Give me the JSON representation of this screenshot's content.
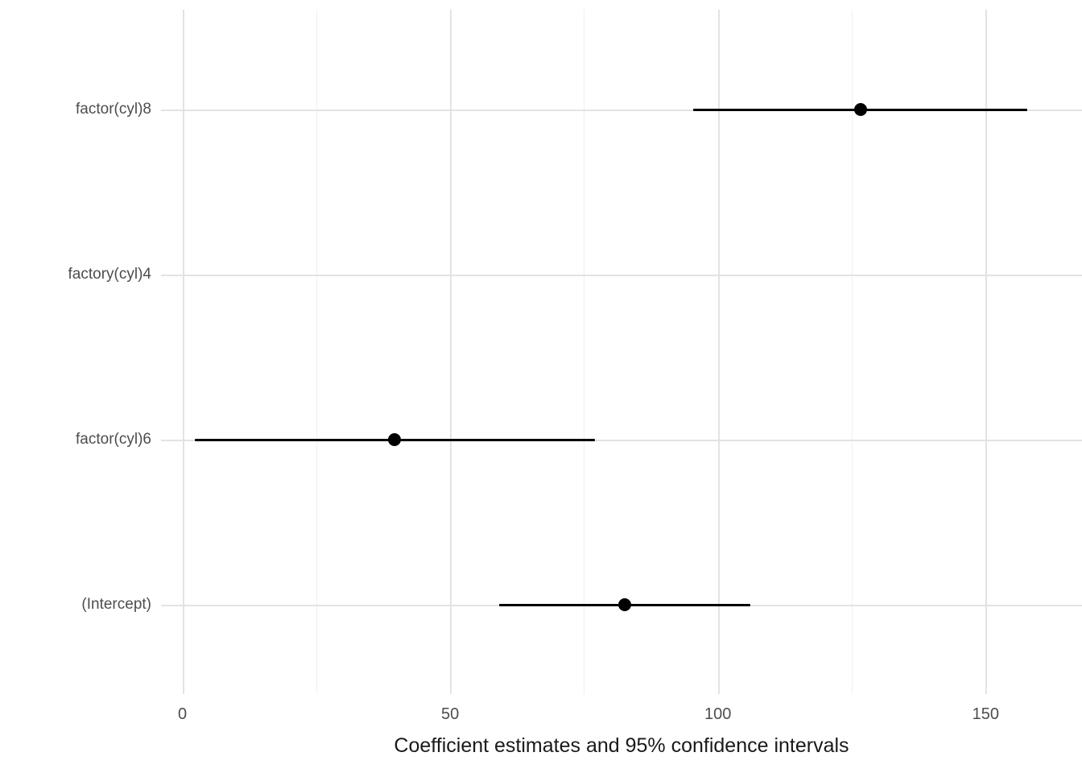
{
  "chart_data": {
    "type": "scatter",
    "subtype": "coefficient-plot-with-error-bars",
    "orientation": "horizontal",
    "title": "",
    "xlabel": "Coefficient estimates and 95% confidence intervals",
    "ylabel": "",
    "xlim": [
      -4,
      168
    ],
    "x_major_ticks": [
      0,
      50,
      100,
      150
    ],
    "x_major_tick_labels": [
      "0",
      "50",
      "100",
      "150"
    ],
    "x_minor_ticks": [
      25,
      75,
      125
    ],
    "grid": "major-and-minor-vertical, major-horizontal-at-categories",
    "legend": "none",
    "categories_top_to_bottom": [
      "factor(cyl)8",
      "factory(cyl)4",
      "factor(cyl)6",
      "(Intercept)"
    ],
    "series": [
      {
        "label": "factor(cyl)8",
        "estimate": 126.6,
        "ci_lower": 95.4,
        "ci_upper": 157.8
      },
      {
        "label": "factory(cyl)4",
        "estimate": null,
        "ci_lower": null,
        "ci_upper": null
      },
      {
        "label": "factor(cyl)6",
        "estimate": 39.6,
        "ci_lower": 2.3,
        "ci_upper": 77.0
      },
      {
        "label": "(Intercept)",
        "estimate": 82.6,
        "ci_lower": 59.2,
        "ci_upper": 106.0
      }
    ],
    "colors": {
      "point": "#000000",
      "ci_line": "#000000",
      "major_grid": "#e3e3e3",
      "minor_grid": "#f0f0f0",
      "axis_text": "#4d4d4d",
      "axis_title": "#1a1a1a",
      "background": "#ffffff"
    }
  }
}
